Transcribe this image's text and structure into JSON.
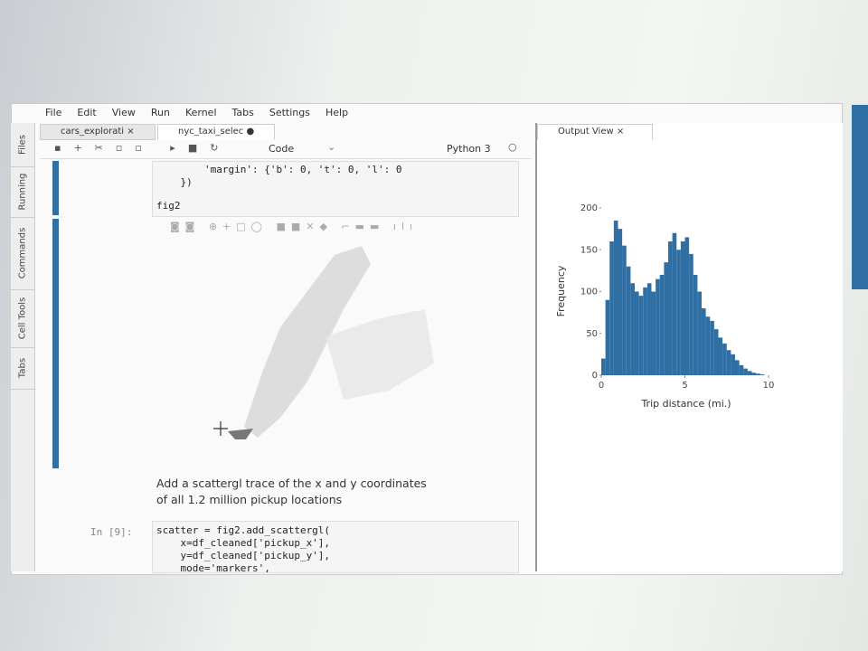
{
  "menu": [
    "File",
    "Edit",
    "View",
    "Run",
    "Kernel",
    "Tabs",
    "Settings",
    "Help"
  ],
  "sidebar": [
    "Files",
    "Running",
    "Commands",
    "Cell Tools",
    "Tabs"
  ],
  "tabs": [
    "cars_explorati",
    "nyc_taxi_selec"
  ],
  "toolbar": {
    "cell_type": "Code",
    "kernel": "Python 3"
  },
  "cell_1": {
    "lines": [
      "        'margin': {'b': 0, 't': 0, 'l': 0",
      "    })"
    ]
  },
  "cell_2": {
    "line": "fig2"
  },
  "markdown": [
    "Add a scattergl trace of the x and y coordinates",
    "of all 1.2 million pickup locations"
  ],
  "cell_3": {
    "prompt": "In [9]:",
    "lines": [
      "scatter = fig2.add_scattergl(",
      "    x=df_cleaned['pickup_x'],",
      "    y=df_cleaned['pickup_y'],",
      "    mode='markers',"
    ]
  },
  "output_view": {
    "tab": "Output View",
    "chart_data": {
      "type": "histogram",
      "x_label": "Trip distance (mi.)",
      "y_label": "Frequency",
      "color": "#2f6fa4",
      "bins": [
        0,
        0.25,
        0.5,
        0.75,
        1,
        1.25,
        1.5,
        1.75,
        2,
        2.25,
        2.5,
        2.75,
        3,
        3.25,
        3.5,
        3.75,
        4,
        4.25,
        4.5,
        4.75,
        5,
        5.25,
        5.5,
        5.75,
        6,
        6.25,
        6.5,
        6.75,
        7,
        7.25,
        7.5,
        7.75,
        8,
        8.25,
        8.5,
        8.75,
        9,
        9.25,
        9.5,
        9.75,
        10
      ],
      "values": [
        20,
        90,
        160,
        185,
        175,
        155,
        130,
        110,
        100,
        95,
        105,
        110,
        100,
        115,
        120,
        135,
        160,
        170,
        150,
        160,
        165,
        145,
        120,
        100,
        80,
        70,
        65,
        55,
        45,
        38,
        30,
        25,
        18,
        12,
        8,
        5,
        3,
        2,
        1,
        0
      ],
      "xlim": [
        0,
        10
      ],
      "xticks": [
        0,
        5,
        10
      ],
      "ylim": [
        0,
        200
      ],
      "yticks": [
        0,
        50,
        100,
        150,
        200
      ]
    }
  }
}
